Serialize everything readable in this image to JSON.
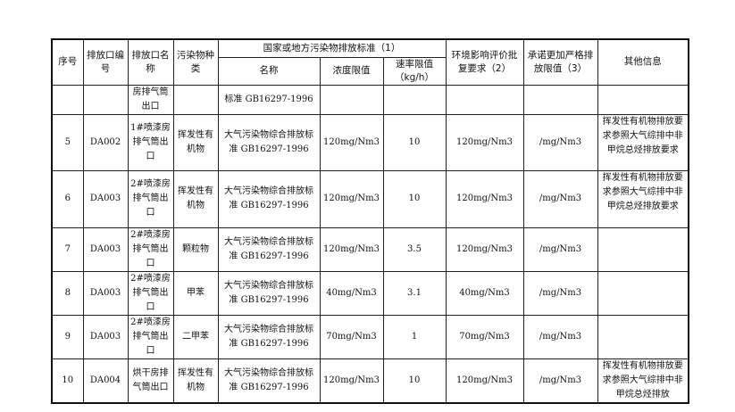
{
  "headers": {
    "seq": "序号",
    "outlet_code": "排放口编号",
    "outlet_name": "排放口名称",
    "pollutant": "污染物种类",
    "standard_group": "国家或地方污染物排放标准（1）",
    "std_name": "名称",
    "concentration": "浓度限值",
    "rate": "速率限值（kg/h）",
    "eia": "环境影响评价批复要求（2）",
    "commit": "承诺更加严格排放限值（3）",
    "other": "其他信息"
  },
  "rows": [
    {
      "seq": "",
      "code": "",
      "name": "房排气筒出口",
      "pollutant": "",
      "std": "标准 GB16297-1996",
      "conc": "",
      "rate": "",
      "eia": "",
      "commit": "",
      "other": ""
    },
    {
      "seq": "5",
      "code": "DA002",
      "name": "1#喷漆房排气筒出口",
      "pollutant": "挥发性有机物",
      "std": "大气污染物综合排放标准 GB16297-1996",
      "conc": "120mg/Nm3",
      "rate": "10",
      "eia": "120mg/Nm3",
      "commit": "/mg/Nm3",
      "other": "挥发性有机物排放要求参照大气综排中非甲烷总烃排放要求"
    },
    {
      "seq": "6",
      "code": "DA003",
      "name": "2#喷漆房排气筒出口",
      "pollutant": "挥发性有机物",
      "std": "大气污染物综合排放标准 GB16297-1996",
      "conc": "120mg/Nm3",
      "rate": "10",
      "eia": "120mg/Nm3",
      "commit": "/mg/Nm3",
      "other": "挥发性有机物排放要求参照大气综排中非甲烷总烃排放要求"
    },
    {
      "seq": "7",
      "code": "DA003",
      "name": "2#喷漆房排气筒出口",
      "pollutant": "颗粒物",
      "std": "大气污染物综合排放标准 GB16297-1996",
      "conc": "120mg/Nm3",
      "rate": "3.5",
      "eia": "120mg/Nm3",
      "commit": "/mg/Nm3",
      "other": ""
    },
    {
      "seq": "8",
      "code": "DA003",
      "name": "2#喷漆房排气筒出口",
      "pollutant": "甲苯",
      "std": "大气污染物综合排放标准 GB16297-1996",
      "conc": "40mg/Nm3",
      "rate": "3.1",
      "eia": "40mg/Nm3",
      "commit": "/mg/Nm3",
      "other": ""
    },
    {
      "seq": "9",
      "code": "DA003",
      "name": "2#喷漆房排气筒出口",
      "pollutant": "二甲苯",
      "std": "大气污染物综合排放标准 GB16297-1996",
      "conc": "70mg/Nm3",
      "rate": "1",
      "eia": "70mg/Nm3",
      "commit": "/mg/Nm3",
      "other": ""
    },
    {
      "seq": "10",
      "code": "DA004",
      "name": "烘干房排气筒出口",
      "pollutant": "挥发性有机物",
      "std": "大气污染物综合排放标准 GB16297-1996",
      "conc": "120mg/Nm3",
      "rate": "10",
      "eia": "120mg/Nm3",
      "commit": "/mg/Nm3",
      "other": "挥发性有机物排放要求参照大气综排中非甲烷总烃排放"
    }
  ]
}
